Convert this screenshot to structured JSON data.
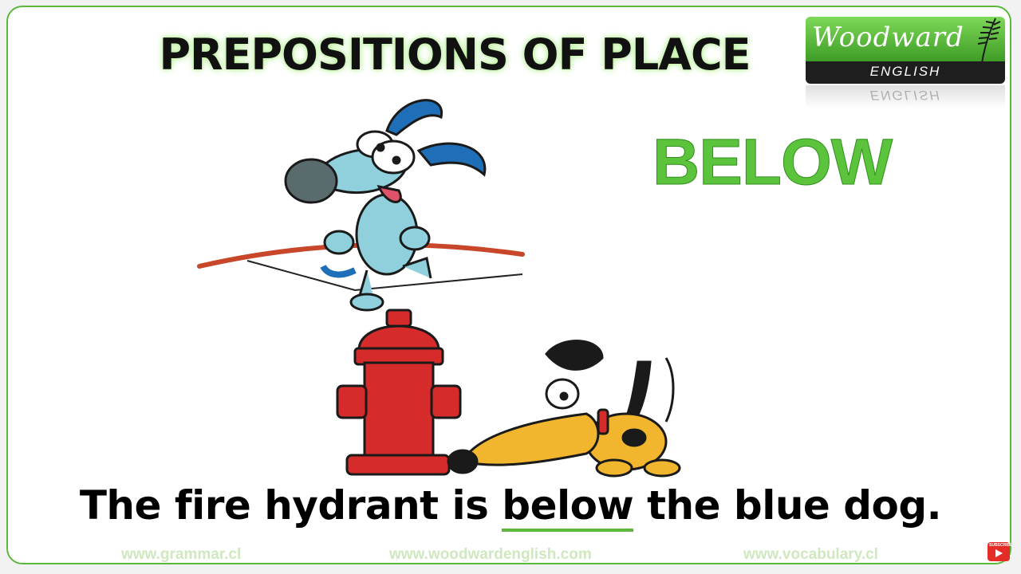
{
  "slide": {
    "title": "PREPOSITIONS OF PLACE",
    "keyword": "BELOW",
    "sentence": {
      "before": "The fire hydrant is ",
      "keyword": "below",
      "after": " the blue dog."
    },
    "accent_color": "#5cb83c"
  },
  "logo": {
    "name": "Woodward",
    "sub": "ENGLISH"
  },
  "footer": {
    "left": "www.grammar.cl",
    "center": "www.woodwardenglish.com",
    "right": "www.vocabulary.cl"
  },
  "subscribe": {
    "label": "SUBSCRIBE",
    "icon": "youtube-icon"
  },
  "illustration": {
    "items": [
      "blue-dog-on-tightrope",
      "fire-hydrant",
      "yellow-dog"
    ]
  }
}
